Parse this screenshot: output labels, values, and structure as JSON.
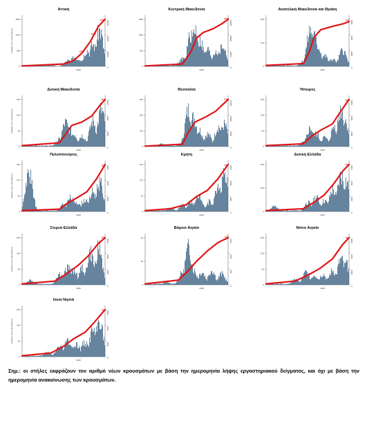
{
  "note": "Σημ.: οι στήλες εκφράζουν τον αριθμό νέων κρουσμάτων με βάση την ημερομηνία λήψης εργαστηριακού δείγματος, και όχι με βάση την ημερομηνία ανακοίνωσης των κρουσμάτων.",
  "colors": {
    "bars": "#4b6e8e",
    "line": "#e01414",
    "axis": "#555555"
  },
  "chart_data": [
    {
      "type": "bar",
      "title": "Αττική",
      "ylabel": "Αριθμός νέων κρουσμάτων",
      "xlabel": "2020",
      "y_ticks": [
        "0",
        "500",
        "1000",
        "1500"
      ],
      "y2_ticks": [
        "0",
        "20000",
        "40000",
        "60000"
      ],
      "bar_peaks": [
        [
          0.55,
          0.16
        ],
        [
          0.63,
          0.26
        ],
        [
          0.68,
          0.22
        ],
        [
          0.78,
          0.45
        ],
        [
          0.85,
          0.6
        ],
        [
          0.93,
          1.0
        ]
      ],
      "line_points": [
        [
          0,
          0.01
        ],
        [
          0.5,
          0.05
        ],
        [
          0.62,
          0.12
        ],
        [
          0.72,
          0.28
        ],
        [
          0.82,
          0.52
        ],
        [
          0.92,
          0.85
        ],
        [
          1,
          1
        ]
      ],
      "labels": [
        {
          "t": "20000",
          "at": 0.72
        },
        {
          "t": "40000",
          "at": 0.86
        },
        {
          "t": "60000",
          "at": 0.97
        }
      ]
    },
    {
      "type": "bar",
      "title": "Κεντρική Μακεδονία",
      "ylabel": "",
      "xlabel": "2020",
      "y_ticks": [
        "0",
        "500",
        "1000",
        "1500"
      ],
      "y2_ticks": [
        "0",
        "10000",
        "20000",
        "30000"
      ],
      "bar_peaks": [
        [
          0.45,
          0.22
        ],
        [
          0.55,
          0.9
        ],
        [
          0.6,
          1.0
        ],
        [
          0.66,
          0.7
        ],
        [
          0.75,
          0.45
        ],
        [
          0.85,
          0.42
        ],
        [
          0.93,
          0.55
        ]
      ],
      "line_points": [
        [
          0,
          0.01
        ],
        [
          0.45,
          0.05
        ],
        [
          0.55,
          0.3
        ],
        [
          0.62,
          0.6
        ],
        [
          0.7,
          0.72
        ],
        [
          0.82,
          0.8
        ],
        [
          0.92,
          0.9
        ],
        [
          1,
          1
        ]
      ],
      "labels": [
        {
          "t": "20000",
          "at": 0.62
        },
        {
          "t": "30000",
          "at": 0.98
        }
      ]
    },
    {
      "type": "bar",
      "title": "Ανατολική Μακεδονία και Θράκη",
      "ylabel": "",
      "xlabel": "2020",
      "y_ticks": [
        "0",
        "100",
        "200"
      ],
      "y2_ticks": [
        "0",
        "2000",
        "4000",
        "6000"
      ],
      "bar_peaks": [
        [
          0.45,
          0.15
        ],
        [
          0.53,
          1.0
        ],
        [
          0.57,
          0.85
        ],
        [
          0.62,
          0.55
        ],
        [
          0.7,
          0.3
        ],
        [
          0.8,
          0.2
        ],
        [
          0.92,
          0.45
        ]
      ],
      "line_points": [
        [
          0,
          0.02
        ],
        [
          0.45,
          0.06
        ],
        [
          0.52,
          0.3
        ],
        [
          0.58,
          0.62
        ],
        [
          0.66,
          0.78
        ],
        [
          0.8,
          0.85
        ],
        [
          0.92,
          0.9
        ],
        [
          1,
          0.95
        ]
      ],
      "labels": [
        {
          "t": "6000",
          "at": 0.98
        }
      ]
    },
    {
      "type": "bar",
      "title": "Δυτική Μακεδονία",
      "ylabel": "Αριθμός νέων κρουσμάτων",
      "xlabel": "2020",
      "y_ticks": [
        "0",
        "50",
        "100",
        "150"
      ],
      "y2_ticks": [
        "0",
        "2000",
        "4000",
        "6000"
      ],
      "bar_peaks": [
        [
          0.45,
          0.2
        ],
        [
          0.52,
          0.65
        ],
        [
          0.56,
          0.5
        ],
        [
          0.62,
          0.35
        ],
        [
          0.72,
          0.3
        ],
        [
          0.85,
          0.7
        ],
        [
          0.95,
          1.0
        ]
      ],
      "line_points": [
        [
          0,
          0.02
        ],
        [
          0.45,
          0.08
        ],
        [
          0.52,
          0.25
        ],
        [
          0.6,
          0.45
        ],
        [
          0.72,
          0.52
        ],
        [
          0.84,
          0.65
        ],
        [
          0.94,
          0.88
        ],
        [
          1,
          1
        ]
      ],
      "labels": [
        {
          "t": "6000",
          "at": 0.98
        }
      ]
    },
    {
      "type": "bar",
      "title": "Θεσσαλία",
      "ylabel": "",
      "xlabel": "2020",
      "y_ticks": [
        "0",
        "100",
        "200",
        "300"
      ],
      "y2_ticks": [
        "0",
        "5000",
        "10000",
        "15000"
      ],
      "bar_peaks": [
        [
          0.2,
          0.08
        ],
        [
          0.45,
          0.12
        ],
        [
          0.52,
          1.0
        ],
        [
          0.58,
          0.8
        ],
        [
          0.65,
          0.45
        ],
        [
          0.75,
          0.35
        ],
        [
          0.88,
          0.55
        ],
        [
          0.95,
          0.6
        ]
      ],
      "line_points": [
        [
          0,
          0.01
        ],
        [
          0.45,
          0.05
        ],
        [
          0.52,
          0.3
        ],
        [
          0.6,
          0.52
        ],
        [
          0.72,
          0.62
        ],
        [
          0.85,
          0.75
        ],
        [
          0.94,
          0.9
        ],
        [
          1,
          1
        ]
      ],
      "labels": [
        {
          "t": "15000",
          "at": 0.98
        }
      ]
    },
    {
      "type": "bar",
      "title": "Ήπειρος",
      "ylabel": "",
      "xlabel": "2020",
      "y_ticks": [
        "0",
        "50",
        "100",
        "150"
      ],
      "y2_ticks": [
        "0",
        "2000",
        "4000",
        "6000"
      ],
      "bar_peaks": [
        [
          0.45,
          0.12
        ],
        [
          0.53,
          0.5
        ],
        [
          0.6,
          0.35
        ],
        [
          0.7,
          0.25
        ],
        [
          0.82,
          0.55
        ],
        [
          0.9,
          1.0
        ],
        [
          0.95,
          0.7
        ]
      ],
      "line_points": [
        [
          0,
          0.02
        ],
        [
          0.45,
          0.06
        ],
        [
          0.55,
          0.22
        ],
        [
          0.66,
          0.35
        ],
        [
          0.8,
          0.48
        ],
        [
          0.9,
          0.75
        ],
        [
          1,
          1
        ]
      ],
      "labels": [
        {
          "t": "6000",
          "at": 0.98
        }
      ]
    },
    {
      "type": "bar",
      "title": "Πελοπόννησος",
      "ylabel": "Αριθμός νέων κρουσμάτων",
      "xlabel": "2020",
      "y_ticks": [
        "0",
        "50",
        "100",
        "150"
      ],
      "y2_ticks": [
        "0",
        "2000",
        "4000",
        "6000"
      ],
      "bar_peaks": [
        [
          0.08,
          1.0
        ],
        [
          0.5,
          0.2
        ],
        [
          0.58,
          0.38
        ],
        [
          0.65,
          0.28
        ],
        [
          0.75,
          0.32
        ],
        [
          0.85,
          0.55
        ],
        [
          0.93,
          0.8
        ]
      ],
      "line_points": [
        [
          0,
          0.02
        ],
        [
          0.45,
          0.05
        ],
        [
          0.55,
          0.18
        ],
        [
          0.65,
          0.28
        ],
        [
          0.78,
          0.42
        ],
        [
          0.9,
          0.7
        ],
        [
          1,
          1
        ]
      ],
      "labels": [
        {
          "t": "6000",
          "at": 0.98
        }
      ]
    },
    {
      "type": "bar",
      "title": "Κρήτη",
      "ylabel": "",
      "xlabel": "2020",
      "y_ticks": [
        "0",
        "50",
        "100",
        "150"
      ],
      "y2_ticks": [
        "0",
        "1000",
        "2000",
        "3000"
      ],
      "bar_peaks": [
        [
          0.3,
          0.1
        ],
        [
          0.45,
          0.18
        ],
        [
          0.55,
          0.3
        ],
        [
          0.65,
          0.45
        ],
        [
          0.78,
          0.28
        ],
        [
          0.88,
          0.7
        ],
        [
          0.95,
          1.0
        ]
      ],
      "line_points": [
        [
          0,
          0.02
        ],
        [
          0.3,
          0.06
        ],
        [
          0.5,
          0.15
        ],
        [
          0.62,
          0.32
        ],
        [
          0.75,
          0.45
        ],
        [
          0.88,
          0.7
        ],
        [
          1,
          1
        ]
      ],
      "labels": [
        {
          "t": "3000",
          "at": 0.98
        }
      ]
    },
    {
      "type": "bar",
      "title": "Δυτική Ελλάδα",
      "ylabel": "",
      "xlabel": "2020",
      "y_ticks": [
        "0",
        "100",
        "200"
      ],
      "y2_ticks": [
        "0",
        "2000",
        "4000",
        "6000"
      ],
      "bar_peaks": [
        [
          0.1,
          0.15
        ],
        [
          0.5,
          0.25
        ],
        [
          0.6,
          0.4
        ],
        [
          0.7,
          0.3
        ],
        [
          0.8,
          0.6
        ],
        [
          0.9,
          1.0
        ],
        [
          0.96,
          0.85
        ]
      ],
      "line_points": [
        [
          0,
          0.02
        ],
        [
          0.45,
          0.06
        ],
        [
          0.58,
          0.2
        ],
        [
          0.7,
          0.35
        ],
        [
          0.82,
          0.6
        ],
        [
          0.92,
          0.85
        ],
        [
          1,
          1
        ]
      ],
      "labels": [
        {
          "t": "6000",
          "at": 0.98
        }
      ]
    },
    {
      "type": "bar",
      "title": "Στερεά Ελλάδα",
      "ylabel": "Αριθμός νέων κρουσμάτων",
      "xlabel": "2020",
      "y_ticks": [
        "0",
        "50",
        "100",
        "150"
      ],
      "y2_ticks": [
        "0",
        "2000",
        "4000",
        "6000"
      ],
      "bar_peaks": [
        [
          0.1,
          0.12
        ],
        [
          0.45,
          0.3
        ],
        [
          0.55,
          0.5
        ],
        [
          0.62,
          0.4
        ],
        [
          0.72,
          0.45
        ],
        [
          0.82,
          0.85
        ],
        [
          0.92,
          1.0
        ]
      ],
      "line_points": [
        [
          0,
          0.02
        ],
        [
          0.4,
          0.08
        ],
        [
          0.55,
          0.25
        ],
        [
          0.68,
          0.42
        ],
        [
          0.8,
          0.62
        ],
        [
          0.92,
          0.88
        ],
        [
          1,
          1
        ]
      ],
      "labels": [
        {
          "t": "6000",
          "at": 0.98
        }
      ]
    },
    {
      "type": "bar",
      "title": "Βόρειο Αιγαίο",
      "ylabel": "",
      "xlabel": "2020",
      "y_ticks": [
        "0",
        "20",
        "40"
      ],
      "y2_ticks": [
        "0",
        "500",
        "1000",
        "1500"
      ],
      "bar_peaks": [
        [
          0.25,
          0.08
        ],
        [
          0.45,
          0.35
        ],
        [
          0.52,
          1.0
        ],
        [
          0.58,
          0.4
        ],
        [
          0.68,
          0.35
        ],
        [
          0.8,
          0.4
        ],
        [
          0.92,
          0.3
        ]
      ],
      "line_points": [
        [
          0,
          0.02
        ],
        [
          0.4,
          0.1
        ],
        [
          0.52,
          0.3
        ],
        [
          0.62,
          0.5
        ],
        [
          0.75,
          0.72
        ],
        [
          0.88,
          0.9
        ],
        [
          1,
          1
        ]
      ],
      "labels": [
        {
          "t": "1500",
          "at": 0.98
        }
      ]
    },
    {
      "type": "bar",
      "title": "Νότιο Αιγαίο",
      "ylabel": "",
      "xlabel": "2020",
      "y_ticks": [
        "0",
        "50",
        "100",
        "150"
      ],
      "y2_ticks": [
        "0",
        "2000",
        "4000",
        "6000"
      ],
      "bar_peaks": [
        [
          0.35,
          0.15
        ],
        [
          0.48,
          0.35
        ],
        [
          0.58,
          0.28
        ],
        [
          0.68,
          0.3
        ],
        [
          0.8,
          0.4
        ],
        [
          0.9,
          0.7
        ],
        [
          0.96,
          0.55
        ]
      ],
      "line_points": [
        [
          0,
          0.02
        ],
        [
          0.35,
          0.08
        ],
        [
          0.5,
          0.2
        ],
        [
          0.65,
          0.35
        ],
        [
          0.8,
          0.55
        ],
        [
          0.92,
          0.85
        ],
        [
          1,
          1
        ]
      ],
      "labels": [
        {
          "t": "6000",
          "at": 0.98
        }
      ]
    },
    {
      "type": "bar",
      "title": "Ιόνια Νησιά",
      "ylabel": "Αριθμός νέων κρουσμάτων",
      "xlabel": "2020",
      "y_ticks": [
        "0",
        "50",
        "100",
        "150"
      ],
      "y2_ticks": [
        "0",
        "1000",
        "2000",
        "3000"
      ],
      "bar_peaks": [
        [
          0.3,
          0.12
        ],
        [
          0.45,
          0.3
        ],
        [
          0.55,
          0.45
        ],
        [
          0.65,
          0.35
        ],
        [
          0.75,
          0.4
        ],
        [
          0.85,
          0.75
        ],
        [
          0.93,
          1.0
        ]
      ],
      "line_points": [
        [
          0,
          0.02
        ],
        [
          0.35,
          0.08
        ],
        [
          0.5,
          0.22
        ],
        [
          0.62,
          0.38
        ],
        [
          0.76,
          0.52
        ],
        [
          0.88,
          0.75
        ],
        [
          1,
          1
        ]
      ],
      "labels": [
        {
          "t": "3000",
          "at": 0.98
        }
      ]
    }
  ]
}
